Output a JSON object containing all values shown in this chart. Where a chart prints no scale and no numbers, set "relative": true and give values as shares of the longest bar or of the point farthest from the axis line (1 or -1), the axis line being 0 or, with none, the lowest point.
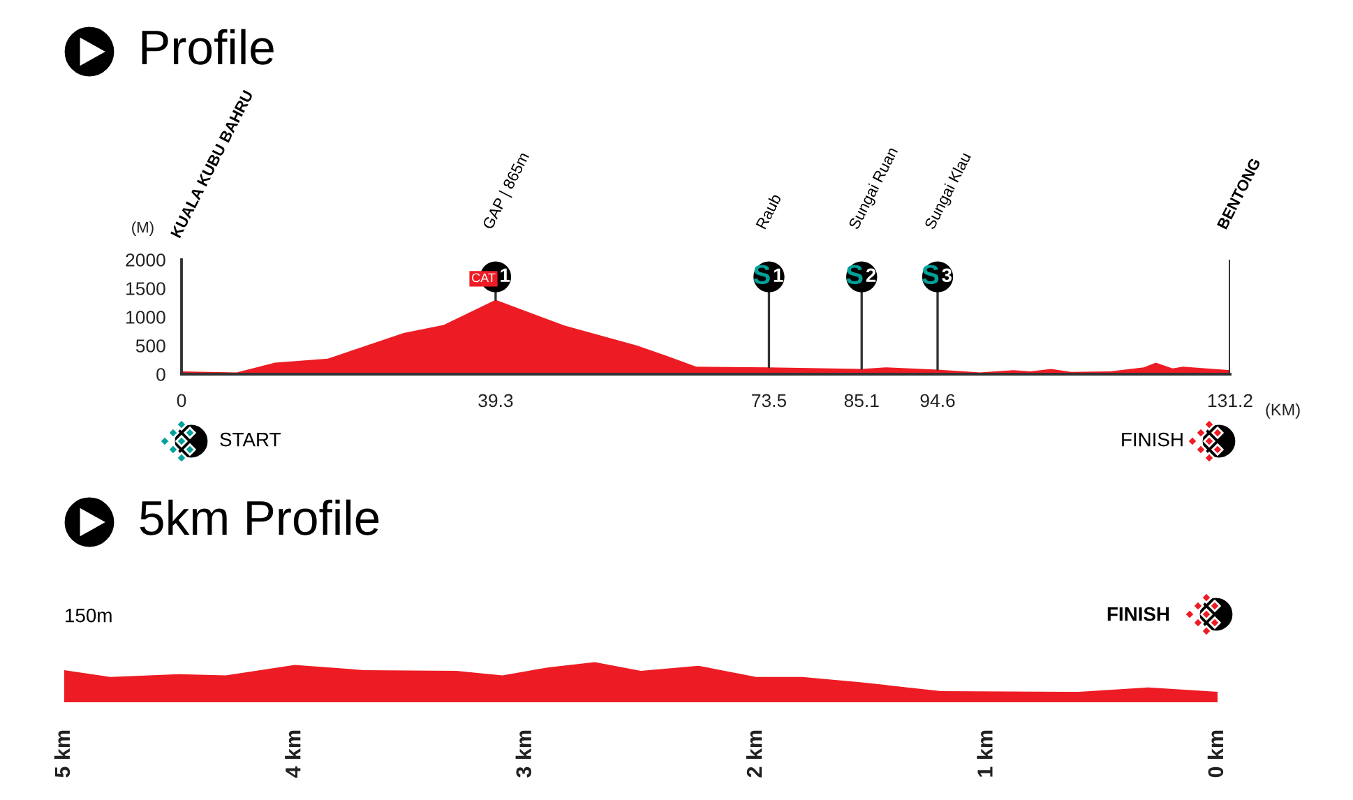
{
  "chart_data": [
    {
      "type": "area",
      "title": "Profile",
      "xlabel": "(KM)",
      "ylabel": "(M)",
      "color": "#ed1c24",
      "x": [
        0,
        6.9,
        11.7,
        18.3,
        27.8,
        32.8,
        39.3,
        47.9,
        57.0,
        60.7,
        64.4,
        73.5,
        85.1,
        88.1,
        94.6,
        99.9,
        104.1,
        106.2,
        108.8,
        111.3,
        116.2,
        120.4,
        121.9,
        124.0,
        125.3,
        131.2
      ],
      "values": [
        50,
        30,
        200,
        270,
        720,
        860,
        1300,
        850,
        500,
        320,
        130,
        120,
        90,
        120,
        80,
        30,
        70,
        50,
        90,
        40,
        50,
        120,
        200,
        100,
        130,
        70
      ],
      "xlim": [
        0,
        131.2
      ],
      "ylim": [
        0,
        2000
      ],
      "xticks": [
        0,
        39.3,
        73.5,
        85.1,
        94.6,
        131.2
      ],
      "yticks": [
        0,
        500,
        1000,
        1500,
        2000
      ],
      "ref_lines": [
        {
          "axis": "x",
          "value": 131.2,
          "label": "BENTONG",
          "color": "#333333"
        }
      ],
      "annotations": [
        {
          "text": "CAT 1",
          "x": 39.3,
          "y": 1300
        },
        {
          "text": "S1",
          "x": 73.5,
          "y": 120
        },
        {
          "text": "S2",
          "x": 85.1,
          "y": 90
        },
        {
          "text": "S3",
          "x": 94.6,
          "y": 80
        },
        "GAP | 865m",
        "Raub",
        "Sungai Ruan",
        "Sungai Klau",
        "KUALA KUBU BAHRU",
        "START",
        "FINISH"
      ]
    },
    {
      "type": "area",
      "title": "5km Profile",
      "relative": true,
      "color": "#ed1c24",
      "x": [
        5,
        4.8,
        4.5,
        4.3,
        4.0,
        3.7,
        3.3,
        3.1,
        2.9,
        2.7,
        2.5,
        2.25,
        2.0,
        1.8,
        1.55,
        1.2,
        0.6,
        0.3,
        0
      ],
      "values": [
        0.8,
        0.63,
        0.7,
        0.67,
        0.93,
        0.8,
        0.78,
        0.67,
        0.87,
        1,
        0.78,
        0.91,
        0.63,
        0.63,
        0.5,
        0.28,
        0.26,
        0.37,
        0.26
      ],
      "xlim": [
        5,
        0
      ],
      "xticks": [
        {
          "value": 5,
          "label": "5 km"
        },
        {
          "value": 4,
          "label": "4 km"
        },
        {
          "value": 3,
          "label": "3 km"
        },
        {
          "value": 2,
          "label": "2 km"
        },
        {
          "value": 1,
          "label": "1 km"
        },
        {
          "value": 0,
          "label": "0 km"
        }
      ],
      "annotations": [
        "150m",
        "FINISH"
      ]
    }
  ]
}
